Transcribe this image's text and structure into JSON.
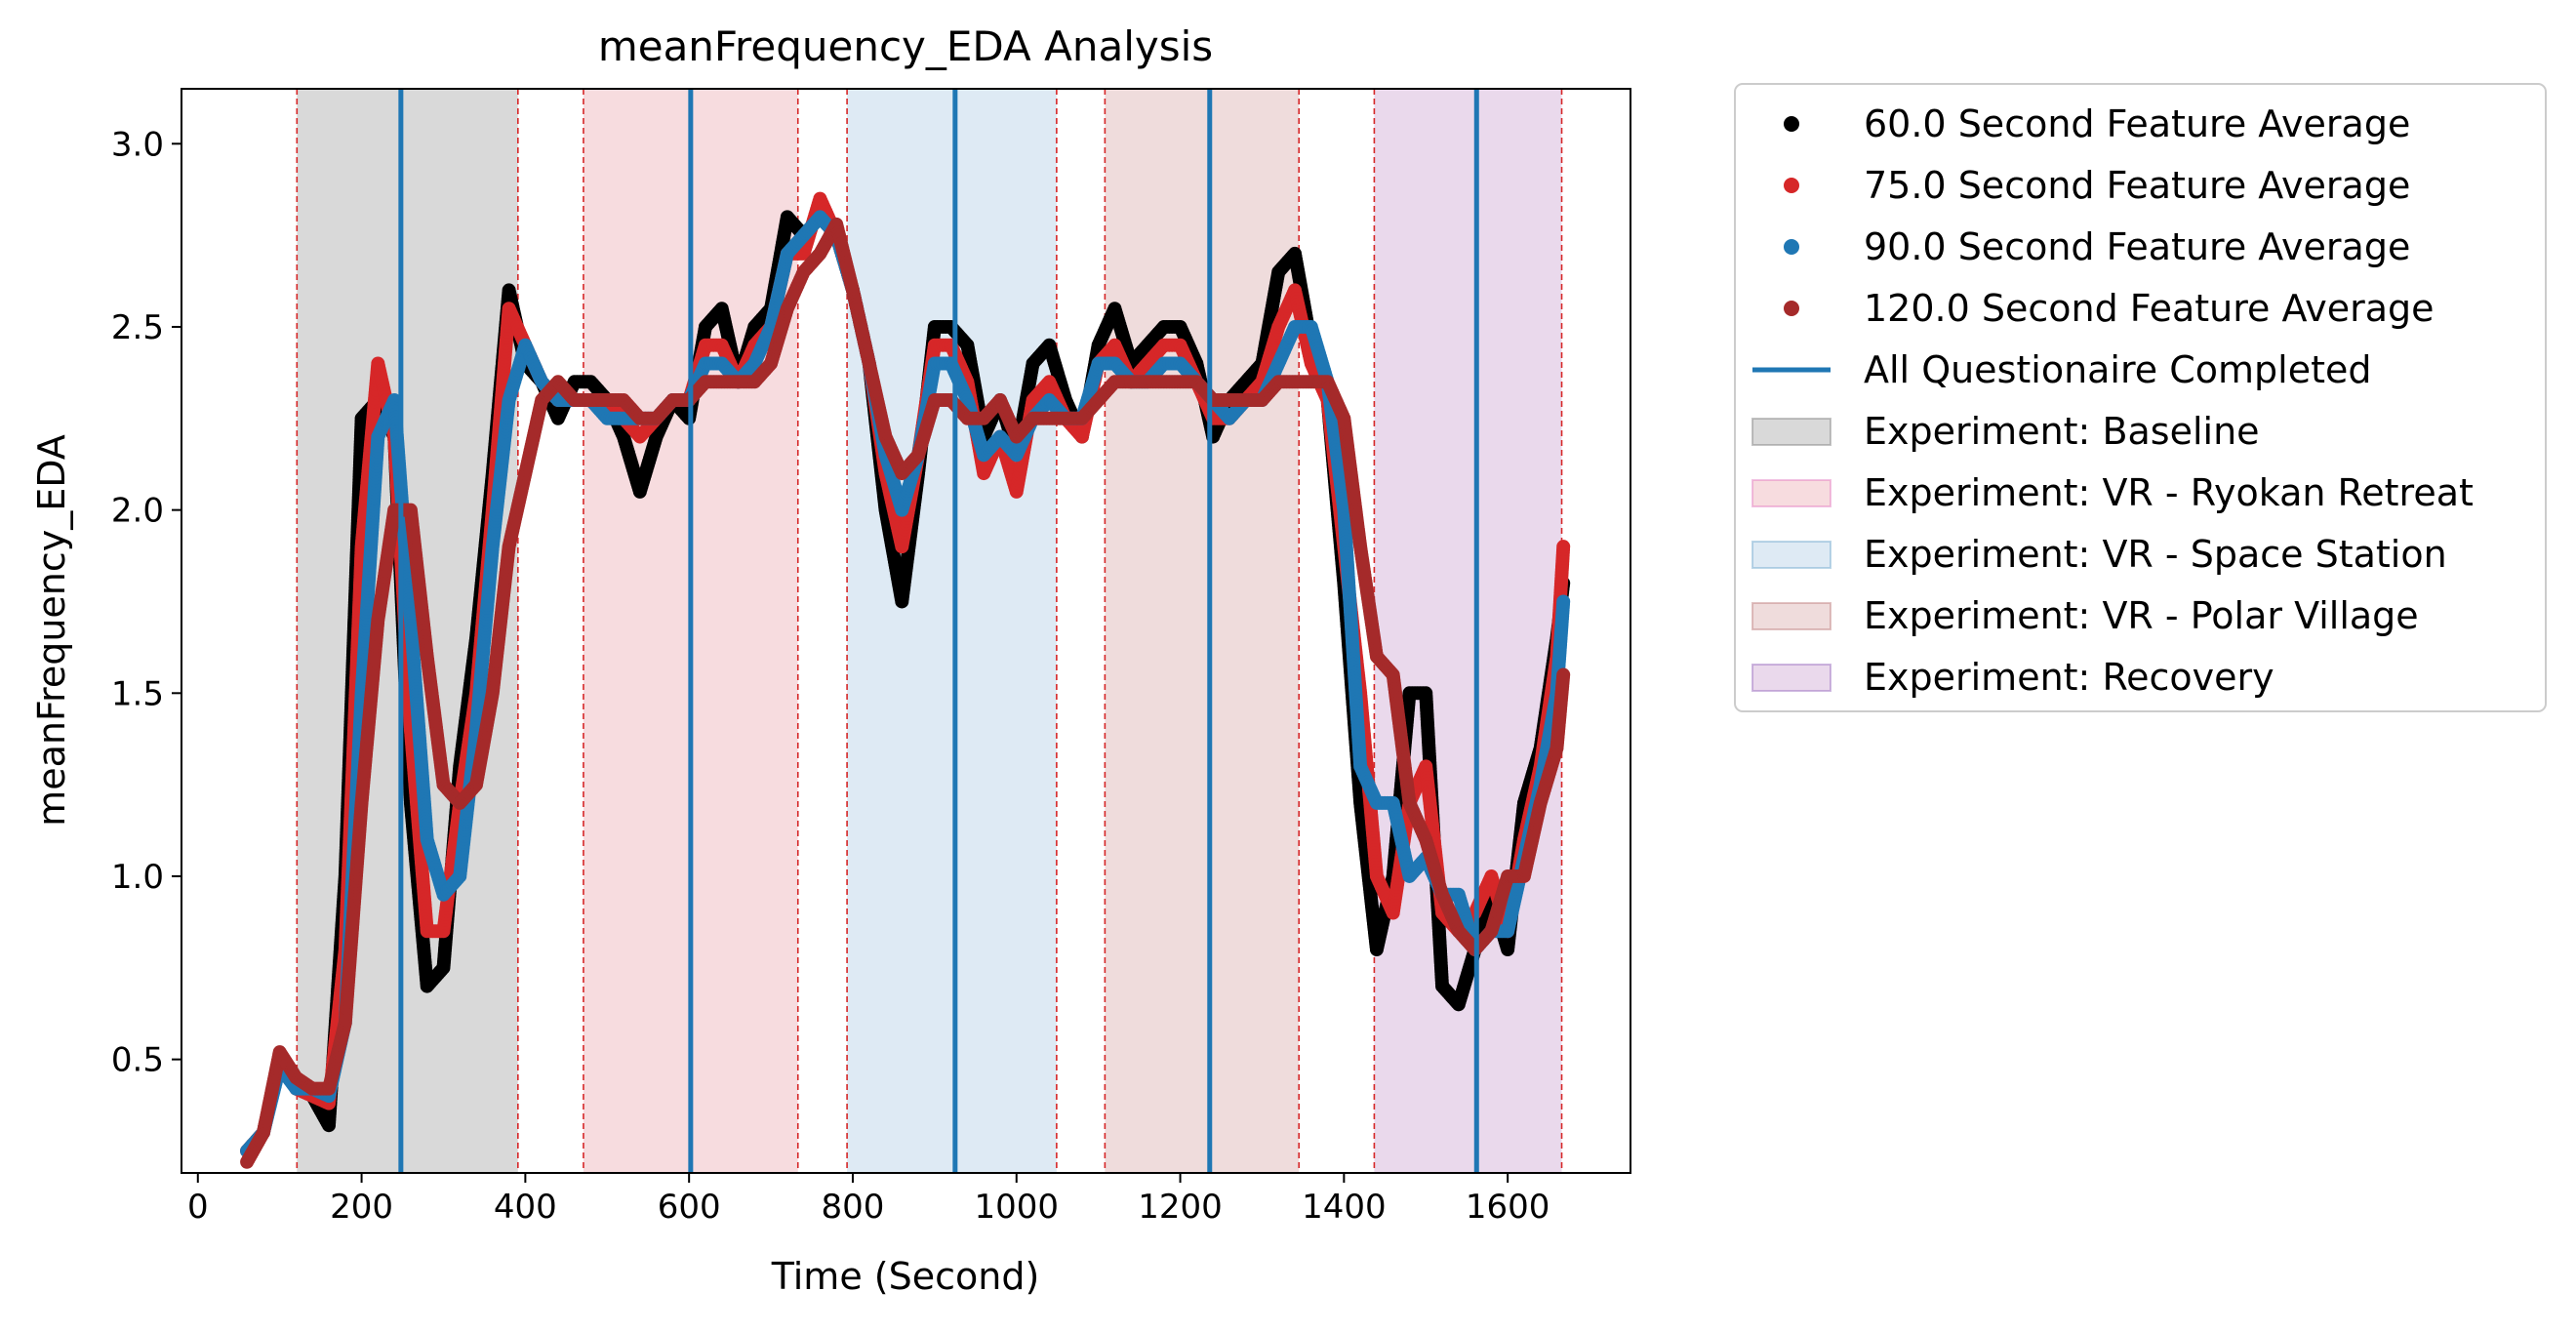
{
  "chart_data": {
    "type": "line",
    "title": "meanFrequency_EDA Analysis",
    "xlabel": "Time (Second)",
    "ylabel": "meanFrequency_EDA",
    "xlim": [
      -20,
      1750
    ],
    "ylim": [
      0.19,
      3.15
    ],
    "xticks": [
      0,
      200,
      400,
      600,
      800,
      1000,
      1200,
      1400,
      1600
    ],
    "yticks": [
      0.5,
      1.0,
      1.5,
      2.0,
      2.5,
      3.0
    ],
    "xtick_labels": [
      "0",
      "200",
      "400",
      "600",
      "800",
      "1000",
      "1200",
      "1400",
      "1600"
    ],
    "ytick_labels": [
      "0.5",
      "1.0",
      "1.5",
      "2.0",
      "2.5",
      "3.0"
    ],
    "grid": false,
    "legend_position": "outside-right",
    "series": [
      {
        "name": "60.0 Second Feature Average",
        "color": "#000000",
        "marker": "circle",
        "x": [
          60,
          80,
          100,
          120,
          140,
          160,
          180,
          200,
          220,
          240,
          260,
          280,
          300,
          320,
          340,
          360,
          380,
          400,
          420,
          440,
          460,
          480,
          500,
          520,
          540,
          560,
          580,
          600,
          620,
          640,
          660,
          680,
          700,
          720,
          740,
          760,
          780,
          800,
          820,
          840,
          860,
          880,
          900,
          920,
          940,
          960,
          980,
          1000,
          1020,
          1040,
          1060,
          1080,
          1100,
          1120,
          1140,
          1160,
          1180,
          1200,
          1220,
          1240,
          1260,
          1280,
          1300,
          1320,
          1340,
          1360,
          1380,
          1400,
          1420,
          1440,
          1460,
          1480,
          1500,
          1520,
          1540,
          1560,
          1580,
          1600,
          1620,
          1640,
          1660,
          1668
        ],
        "y": [
          0.25,
          0.3,
          0.5,
          0.45,
          0.4,
          0.32,
          1.0,
          2.25,
          2.3,
          2.2,
          1.2,
          0.7,
          0.75,
          1.3,
          1.65,
          2.1,
          2.6,
          2.4,
          2.35,
          2.25,
          2.35,
          2.35,
          2.3,
          2.2,
          2.05,
          2.2,
          2.3,
          2.25,
          2.5,
          2.55,
          2.35,
          2.5,
          2.55,
          2.8,
          2.75,
          2.8,
          2.75,
          2.6,
          2.4,
          2.0,
          1.75,
          2.1,
          2.5,
          2.5,
          2.45,
          2.2,
          2.3,
          2.15,
          2.4,
          2.45,
          2.3,
          2.2,
          2.45,
          2.55,
          2.4,
          2.45,
          2.5,
          2.5,
          2.4,
          2.2,
          2.3,
          2.35,
          2.4,
          2.65,
          2.7,
          2.45,
          2.3,
          1.8,
          1.2,
          0.8,
          1.0,
          1.5,
          1.5,
          0.7,
          0.65,
          0.8,
          0.95,
          0.8,
          1.2,
          1.35,
          1.65,
          1.8
        ]
      },
      {
        "name": "75.0 Second Feature Average",
        "color": "#d62728",
        "marker": "circle",
        "x": [
          60,
          80,
          100,
          120,
          140,
          160,
          180,
          200,
          220,
          240,
          260,
          280,
          300,
          320,
          340,
          360,
          380,
          400,
          420,
          440,
          460,
          480,
          500,
          520,
          540,
          560,
          580,
          600,
          620,
          640,
          660,
          680,
          700,
          720,
          740,
          760,
          780,
          800,
          820,
          840,
          860,
          880,
          900,
          920,
          940,
          960,
          980,
          1000,
          1020,
          1040,
          1060,
          1080,
          1100,
          1120,
          1140,
          1160,
          1180,
          1200,
          1220,
          1240,
          1260,
          1280,
          1300,
          1320,
          1340,
          1360,
          1380,
          1400,
          1420,
          1440,
          1460,
          1480,
          1500,
          1520,
          1540,
          1560,
          1580,
          1600,
          1620,
          1640,
          1660,
          1668
        ],
        "y": [
          0.25,
          0.3,
          0.5,
          0.42,
          0.4,
          0.38,
          0.8,
          1.9,
          2.4,
          2.2,
          1.4,
          0.85,
          0.85,
          1.2,
          1.5,
          2.0,
          2.55,
          2.45,
          2.35,
          2.3,
          2.3,
          2.3,
          2.3,
          2.25,
          2.2,
          2.25,
          2.3,
          2.3,
          2.45,
          2.45,
          2.35,
          2.45,
          2.5,
          2.7,
          2.7,
          2.85,
          2.75,
          2.6,
          2.4,
          2.1,
          1.9,
          2.15,
          2.45,
          2.45,
          2.35,
          2.1,
          2.2,
          2.05,
          2.3,
          2.35,
          2.25,
          2.2,
          2.4,
          2.45,
          2.35,
          2.4,
          2.45,
          2.45,
          2.35,
          2.25,
          2.25,
          2.3,
          2.35,
          2.5,
          2.6,
          2.4,
          2.3,
          1.9,
          1.5,
          1.0,
          0.9,
          1.2,
          1.3,
          0.9,
          0.85,
          0.9,
          1.0,
          0.85,
          1.1,
          1.3,
          1.6,
          1.9
        ]
      },
      {
        "name": "90.0 Second Feature Average",
        "color": "#1f77b4",
        "marker": "circle",
        "x": [
          60,
          80,
          100,
          120,
          140,
          160,
          180,
          200,
          220,
          240,
          260,
          280,
          300,
          320,
          340,
          360,
          380,
          400,
          420,
          440,
          460,
          480,
          500,
          520,
          540,
          560,
          580,
          600,
          620,
          640,
          660,
          680,
          700,
          720,
          740,
          760,
          780,
          800,
          820,
          840,
          860,
          880,
          900,
          920,
          940,
          960,
          980,
          1000,
          1020,
          1040,
          1060,
          1080,
          1100,
          1120,
          1140,
          1160,
          1180,
          1200,
          1220,
          1240,
          1260,
          1280,
          1300,
          1320,
          1340,
          1360,
          1380,
          1400,
          1420,
          1440,
          1460,
          1480,
          1500,
          1520,
          1540,
          1560,
          1580,
          1600,
          1620,
          1640,
          1660,
          1668
        ],
        "y": [
          0.25,
          0.3,
          0.48,
          0.42,
          0.42,
          0.4,
          0.6,
          1.5,
          2.2,
          2.3,
          1.7,
          1.1,
          0.95,
          1.0,
          1.4,
          1.9,
          2.3,
          2.45,
          2.35,
          2.3,
          2.3,
          2.3,
          2.25,
          2.25,
          2.25,
          2.25,
          2.3,
          2.3,
          2.4,
          2.4,
          2.35,
          2.4,
          2.5,
          2.7,
          2.75,
          2.8,
          2.75,
          2.6,
          2.4,
          2.15,
          2.0,
          2.15,
          2.4,
          2.4,
          2.3,
          2.15,
          2.2,
          2.15,
          2.25,
          2.3,
          2.25,
          2.25,
          2.4,
          2.4,
          2.35,
          2.35,
          2.4,
          2.4,
          2.35,
          2.3,
          2.25,
          2.3,
          2.3,
          2.4,
          2.5,
          2.5,
          2.35,
          2.0,
          1.3,
          1.2,
          1.2,
          1.0,
          1.05,
          0.95,
          0.95,
          0.8,
          0.85,
          0.85,
          1.05,
          1.25,
          1.5,
          1.75
        ]
      },
      {
        "name": "120.0 Second Feature Average",
        "color": "#a52a2a",
        "marker": "circle",
        "x": [
          60,
          80,
          100,
          120,
          140,
          160,
          180,
          200,
          220,
          240,
          260,
          280,
          300,
          320,
          340,
          360,
          380,
          400,
          420,
          440,
          460,
          480,
          500,
          520,
          540,
          560,
          580,
          600,
          620,
          640,
          660,
          680,
          700,
          720,
          740,
          760,
          780,
          800,
          820,
          840,
          860,
          880,
          900,
          920,
          940,
          960,
          980,
          1000,
          1020,
          1040,
          1060,
          1080,
          1100,
          1120,
          1140,
          1160,
          1180,
          1200,
          1220,
          1240,
          1260,
          1280,
          1300,
          1320,
          1340,
          1360,
          1380,
          1400,
          1420,
          1440,
          1460,
          1480,
          1500,
          1520,
          1540,
          1560,
          1580,
          1600,
          1620,
          1640,
          1660,
          1668
        ],
        "y": [
          0.22,
          0.3,
          0.52,
          0.45,
          0.42,
          0.42,
          0.6,
          1.2,
          1.7,
          2.0,
          2.0,
          1.6,
          1.25,
          1.2,
          1.25,
          1.5,
          1.9,
          2.1,
          2.3,
          2.35,
          2.3,
          2.3,
          2.3,
          2.3,
          2.25,
          2.25,
          2.3,
          2.3,
          2.35,
          2.35,
          2.35,
          2.35,
          2.4,
          2.55,
          2.65,
          2.7,
          2.78,
          2.6,
          2.4,
          2.2,
          2.1,
          2.15,
          2.3,
          2.3,
          2.25,
          2.25,
          2.3,
          2.2,
          2.25,
          2.25,
          2.25,
          2.25,
          2.3,
          2.35,
          2.35,
          2.35,
          2.35,
          2.35,
          2.35,
          2.3,
          2.3,
          2.3,
          2.3,
          2.35,
          2.35,
          2.35,
          2.35,
          2.25,
          1.9,
          1.6,
          1.55,
          1.2,
          1.1,
          0.95,
          0.85,
          0.8,
          0.85,
          1.0,
          1.0,
          1.2,
          1.35,
          1.55
        ]
      }
    ],
    "vlines": {
      "name": "All Questionaire Completed",
      "color": "#1f77b4",
      "x": [
        248,
        602,
        925,
        1236,
        1562
      ]
    },
    "regions": [
      {
        "name": "Experiment: Baseline",
        "color": "#7f7f7f",
        "start": 121,
        "end": 391
      },
      {
        "name": "Experiment: VR - Ryokan Retreat",
        "color": "#e377c2",
        "start": 471,
        "end": 733
      },
      {
        "name": "Experiment: VR - Space Station",
        "color": "#6ca6cd",
        "start": 793,
        "end": 1049
      },
      {
        "name": "Experiment: VR - Polar Village",
        "color": "#bc7a7a",
        "start": 1108,
        "end": 1345
      },
      {
        "name": "Experiment: Recovery",
        "color": "#9467bd",
        "start": 1437,
        "end": 1666
      }
    ],
    "region_colors_rendered": {
      "Experiment: Baseline": "#d9d9d9",
      "Experiment: VR - Ryokan Retreat": "#f7dcdf",
      "Experiment: VR - Space Station": "#deeaf4",
      "Experiment: VR - Polar Village": "#efdcdc",
      "Experiment: Recovery": "#ead9ec"
    },
    "region_boundary_color": "#d62728"
  }
}
